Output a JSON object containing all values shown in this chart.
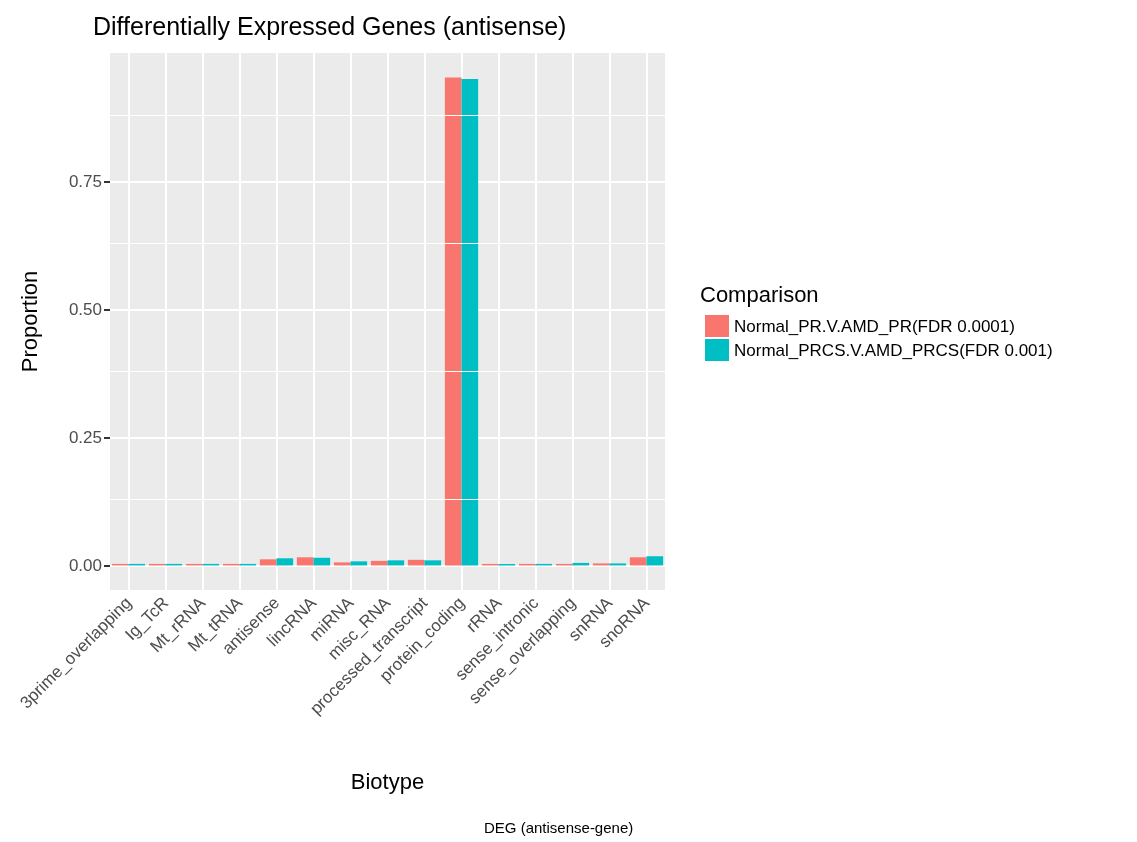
{
  "chart_data": {
    "type": "bar",
    "title": "Differentially Expressed Genes (antisense)",
    "xlabel": "Biotype",
    "ylabel": "Proportion",
    "legend_title": "Comparison",
    "categories": [
      "3prime_overlapping",
      "Ig_TcR",
      "Mt_rRNA",
      "Mt_tRNA",
      "antisense",
      "lincRNA",
      "miRNA",
      "misc_RNA",
      "processed_transcript",
      "protein_coding",
      "rRNA",
      "sense_intronic",
      "sense_overlapping",
      "snRNA",
      "snoRNA"
    ],
    "series": [
      {
        "name": "Normal_PR.V.AMD_PR(FDR 0.0001)",
        "color": "#f8766d",
        "values": [
          0.003,
          0.003,
          0.003,
          0.003,
          0.012,
          0.016,
          0.006,
          0.009,
          0.011,
          0.954,
          0.003,
          0.003,
          0.003,
          0.004,
          0.016
        ]
      },
      {
        "name": "Normal_PRCS.V.AMD_PRCS(FDR 0.001)",
        "color": "#00bfc4",
        "values": [
          0.003,
          0.003,
          0.003,
          0.003,
          0.014,
          0.015,
          0.008,
          0.01,
          0.01,
          0.951,
          0.003,
          0.003,
          0.005,
          0.004,
          0.018
        ]
      }
    ],
    "ylim": [
      -0.048,
      1.002
    ],
    "yticks": [
      {
        "value": 0,
        "label": "0.00"
      },
      0.25,
      {
        "value": 0.5,
        "label": "0.50"
      },
      0.75
    ],
    "grid": true,
    "legend": "right",
    "annotations": [
      "DEG (antisense-gene)"
    ]
  }
}
